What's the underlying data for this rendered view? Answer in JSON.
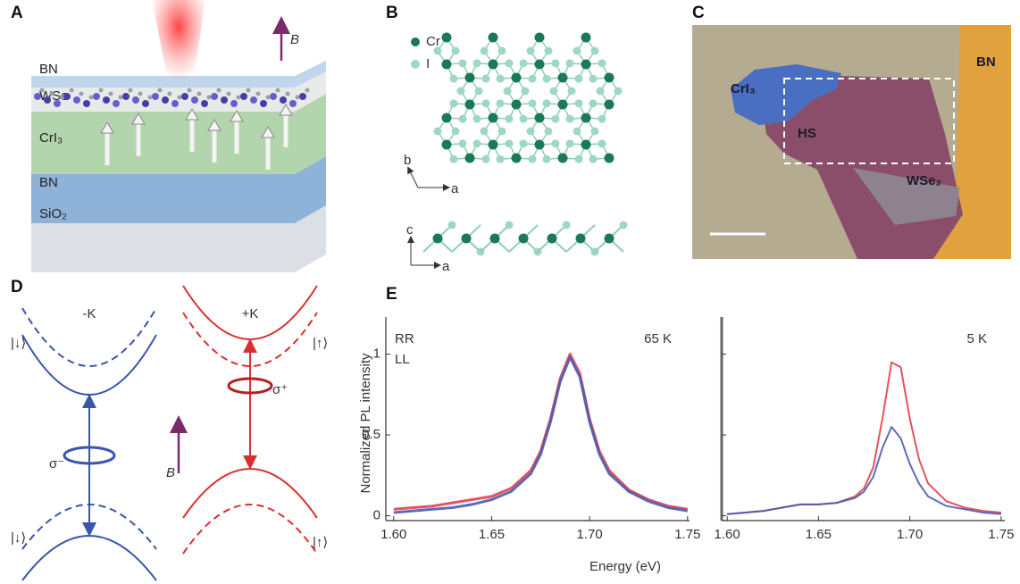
{
  "panel_a": {
    "label": "A",
    "field_label": "B",
    "layers": [
      "BN",
      "WSe",
      "CrI₃",
      "BN",
      "SiO₂"
    ]
  },
  "panel_b": {
    "label": "B",
    "legend": [
      "Cr",
      "I"
    ],
    "top_axes": [
      "b",
      "a"
    ],
    "side_axes": [
      "c",
      "a"
    ]
  },
  "panel_c": {
    "label": "C",
    "regions": [
      "CrI₃",
      "BN",
      "HS",
      "WSe₂"
    ]
  },
  "panel_d": {
    "label": "D",
    "valleys": [
      "-K",
      "+K"
    ],
    "kets": [
      "|↓⟩",
      "|↓⟩",
      "|↑⟩",
      "|↑⟩"
    ],
    "polarizations": [
      "σ⁻",
      "σ⁺"
    ],
    "field_label": "B"
  },
  "panel_e": {
    "label": "E",
    "xlabel": "Energy (eV)"
  },
  "chart_data": [
    {
      "type": "line",
      "ylabel": "Normalized PL intensity",
      "annotation": "65 K",
      "legend": "top-left",
      "x": [
        1.6,
        1.61,
        1.62,
        1.63,
        1.64,
        1.65,
        1.66,
        1.67,
        1.675,
        1.68,
        1.685,
        1.69,
        1.695,
        1.7,
        1.705,
        1.71,
        1.72,
        1.73,
        1.74,
        1.75
      ],
      "series": [
        {
          "name": "RR",
          "color": "#e0404c",
          "values": [
            0.04,
            0.05,
            0.06,
            0.08,
            0.1,
            0.12,
            0.17,
            0.28,
            0.4,
            0.6,
            0.85,
            1.0,
            0.88,
            0.6,
            0.4,
            0.28,
            0.16,
            0.1,
            0.06,
            0.04
          ]
        },
        {
          "name": "LL",
          "color": "#4a5cb0",
          "values": [
            0.02,
            0.03,
            0.04,
            0.05,
            0.07,
            0.1,
            0.15,
            0.26,
            0.38,
            0.58,
            0.83,
            0.98,
            0.86,
            0.58,
            0.38,
            0.26,
            0.15,
            0.09,
            0.05,
            0.03
          ]
        }
      ],
      "xlim": [
        1.596,
        1.751
      ],
      "ylim": [
        -0.03,
        1.23
      ],
      "xticks": [
        {
          "value": 1.6,
          "label": "1.60"
        },
        1.65,
        {
          "value": 1.7,
          "label": "1.70"
        },
        1.75
      ],
      "yticks": [
        0,
        0.5,
        1
      ],
      "show_ytick_labels": true
    },
    {
      "type": "line",
      "annotation": "5 K",
      "legend": "none",
      "x": [
        1.6,
        1.61,
        1.62,
        1.63,
        1.64,
        1.65,
        1.66,
        1.67,
        1.675,
        1.68,
        1.685,
        1.69,
        1.695,
        1.7,
        1.705,
        1.71,
        1.72,
        1.73,
        1.74,
        1.75
      ],
      "series": [
        {
          "name": "RR",
          "color": "#e0404c",
          "values": [
            0.01,
            0.02,
            0.03,
            0.05,
            0.07,
            0.07,
            0.08,
            0.12,
            0.17,
            0.3,
            0.6,
            0.95,
            0.92,
            0.6,
            0.35,
            0.2,
            0.09,
            0.05,
            0.03,
            0.02
          ]
        },
        {
          "name": "LL",
          "color": "#4a5cb0",
          "values": [
            0.01,
            0.02,
            0.03,
            0.05,
            0.07,
            0.07,
            0.08,
            0.11,
            0.15,
            0.24,
            0.42,
            0.55,
            0.48,
            0.32,
            0.2,
            0.12,
            0.06,
            0.04,
            0.02,
            0.01
          ]
        }
      ],
      "xlim": [
        1.597,
        1.752
      ],
      "ylim": [
        -0.03,
        1.23
      ],
      "xticks": [
        {
          "value": 1.6,
          "label": "1.60"
        },
        1.65,
        {
          "value": 1.7,
          "label": "1.70"
        },
        1.75
      ],
      "yticks": [
        0,
        0.5,
        1
      ],
      "show_ytick_labels": false
    }
  ]
}
